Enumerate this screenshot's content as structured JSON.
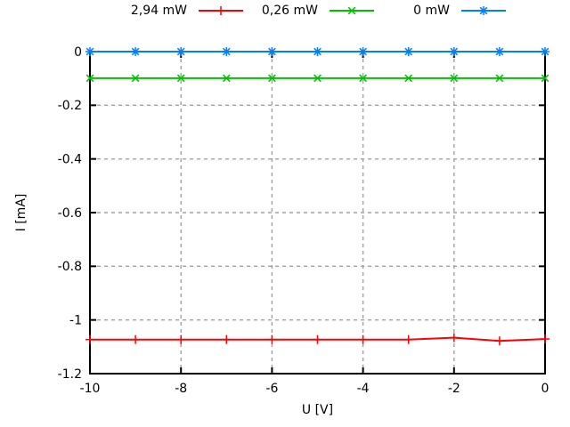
{
  "chart_data": {
    "type": "line",
    "title": "",
    "xlabel": "U [V]",
    "ylabel": "I [mA]",
    "xlim": [
      -10,
      0
    ],
    "ylim": [
      -1.2,
      0
    ],
    "x": [
      -10,
      -9,
      -8,
      -7,
      -6,
      -5,
      -4,
      -3,
      -2,
      -1,
      0
    ],
    "series": [
      {
        "name": "2,94 mW",
        "color": "#ff0000",
        "marker": "plus",
        "values": [
          -1.073,
          -1.073,
          -1.073,
          -1.073,
          -1.073,
          -1.073,
          -1.073,
          -1.073,
          -1.066,
          -1.078,
          -1.071
        ]
      },
      {
        "name": "0,26 mW",
        "color": "#00c000",
        "marker": "cross",
        "values": [
          -0.099,
          -0.099,
          -0.099,
          -0.099,
          -0.099,
          -0.099,
          -0.099,
          -0.099,
          -0.099,
          -0.099,
          -0.099
        ]
      },
      {
        "name": "0 mW",
        "color": "#0080ff",
        "marker": "asterisk",
        "values": [
          0,
          0,
          0,
          0,
          0,
          0,
          0,
          0,
          0,
          0,
          0
        ]
      }
    ],
    "xticks": {
      "values": [
        -10,
        -8,
        -6,
        -4,
        -2,
        0
      ],
      "labels": [
        "-10",
        "-8",
        "-6",
        "-4",
        "-2",
        "0"
      ]
    },
    "yticks": {
      "values": [
        0,
        -0.2,
        -0.4,
        -0.6,
        -0.8,
        -1,
        -1.2
      ],
      "labels": [
        "0",
        "-0.2",
        "-0.4",
        "-0.6",
        "-0.8",
        "-1",
        "-1.2"
      ]
    },
    "grid": {
      "show": true,
      "color": "#a0a0a0",
      "style": "dashed"
    },
    "legend_position": "top-outside-horizontal",
    "background": "#ffffff",
    "border_color": "#000000",
    "text_color": "#000000"
  }
}
